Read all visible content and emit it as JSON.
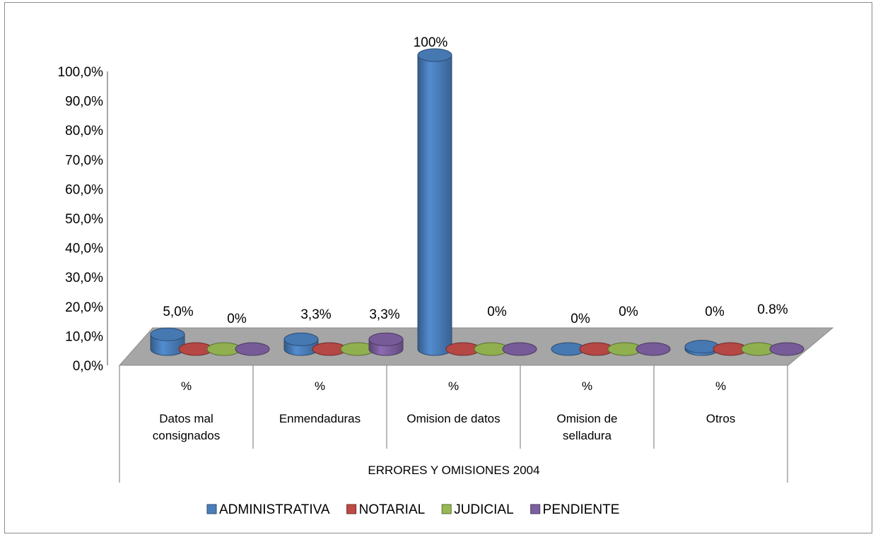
{
  "chart_data": {
    "type": "bar",
    "x_group_label": "ERRORES Y OMISIONES 2004",
    "sub_label": "%",
    "categories": [
      "Datos mal consignados",
      "Enmendaduras",
      "Omision de datos",
      "Omision de selladura",
      "Otros"
    ],
    "category_lines": [
      [
        "Datos mal",
        "consignados"
      ],
      [
        "Enmendaduras"
      ],
      [
        "Omision de datos"
      ],
      [
        "Omision de",
        "selladura"
      ],
      [
        "Otros"
      ]
    ],
    "ylim": [
      0,
      100
    ],
    "y_ticks": [
      "0,0%",
      "10,0%",
      "20,0%",
      "30,0%",
      "40,0%",
      "50,0%",
      "60,0%",
      "70,0%",
      "80,0%",
      "90,0%",
      "100,0%"
    ],
    "series": [
      {
        "name": "ADMINISTRATIVA",
        "color": "#4a7ebb",
        "values": [
          5.0,
          3.3,
          100,
          0,
          0.8
        ]
      },
      {
        "name": "NOTARIAL",
        "color": "#be4b48",
        "values": [
          0,
          0,
          0,
          0,
          0
        ]
      },
      {
        "name": "JUDICIAL",
        "color": "#98b954",
        "values": [
          0,
          0,
          0,
          0,
          0
        ]
      },
      {
        "name": "PENDIENTE",
        "color": "#7d60a0",
        "values": [
          0,
          3.3,
          0,
          0,
          0
        ]
      }
    ],
    "data_labels": [
      {
        "category": 0,
        "text": "5,0%"
      },
      {
        "category": 0,
        "text": "0%"
      },
      {
        "category": 1,
        "text": "3,3%"
      },
      {
        "category": 1,
        "text": "3,3%"
      },
      {
        "category": 2,
        "text": "100%"
      },
      {
        "category": 2,
        "text": "0%"
      },
      {
        "category": 3,
        "text": "0%"
      },
      {
        "category": 3,
        "text": "0%"
      },
      {
        "category": 4,
        "text": "0%"
      },
      {
        "category": 4,
        "text": "0.8%"
      }
    ],
    "legend_position": "bottom",
    "grid": false
  }
}
